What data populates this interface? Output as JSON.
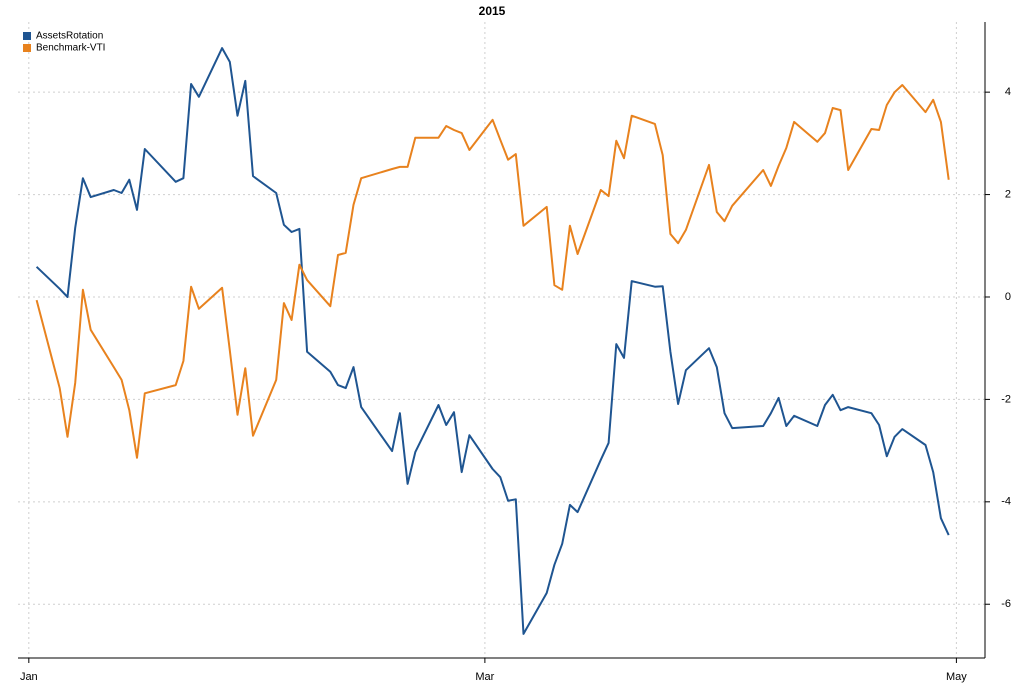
{
  "chart_data": {
    "type": "line",
    "title": "2015",
    "x": [
      1,
      4,
      5,
      6,
      7,
      8,
      11,
      12,
      13,
      14,
      15,
      19,
      20,
      21,
      22,
      25,
      26,
      27,
      28,
      29,
      32,
      33,
      34,
      35,
      36,
      39,
      40,
      41,
      42,
      43,
      47,
      48,
      49,
      50,
      53,
      54,
      55,
      56,
      57,
      60,
      61,
      62,
      63,
      64,
      67,
      68,
      69,
      70,
      71,
      74,
      75,
      76,
      77,
      78,
      81,
      82,
      83,
      84,
      85,
      88,
      89,
      90,
      91,
      95,
      96,
      97,
      98,
      99,
      102,
      103,
      104,
      105,
      106,
      109,
      110,
      111,
      112,
      113,
      116,
      117,
      118,
      119
    ],
    "xlim": [
      -1.4,
      123.7
    ],
    "xticks": [
      {
        "value": 0,
        "label": "Jan"
      },
      {
        "value": 59,
        "label": "Mar"
      },
      {
        "value": 120,
        "label": "May"
      }
    ],
    "ylim": [
      -7.05,
      5.37
    ],
    "yticks": [
      -6,
      -4,
      -2,
      0,
      2,
      4
    ],
    "grid": true,
    "legend": "top-left",
    "series": [
      {
        "name": "AssetsRotation",
        "color": "#1f5591",
        "values": [
          0.59,
          0.16,
          0,
          1.35,
          2.32,
          1.95,
          2.09,
          2.03,
          2.29,
          1.7,
          2.89,
          2.25,
          2.32,
          4.16,
          3.91,
          4.86,
          4.59,
          3.54,
          4.22,
          2.36,
          2.03,
          1.41,
          1.27,
          1.33,
          -1.07,
          -1.46,
          -1.72,
          -1.78,
          -1.37,
          -2.15,
          -3.01,
          -2.27,
          -3.65,
          -3.03,
          -2.11,
          -2.5,
          -2.25,
          -3.42,
          -2.7,
          -3.36,
          -3.52,
          -3.98,
          -3.95,
          -6.58,
          -5.78,
          -5.23,
          -4.82,
          -4.06,
          -4.2,
          -3.18,
          -2.85,
          -0.92,
          -1.19,
          0.31,
          0.2,
          0.21,
          -1.07,
          -2.09,
          -1.43,
          -1.0,
          -1.37,
          -2.27,
          -2.56,
          -2.52,
          -2.27,
          -1.97,
          -2.52,
          -2.32,
          -2.52,
          -2.11,
          -1.91,
          -2.21,
          -2.15,
          -2.27,
          -2.5,
          -3.11,
          -2.73,
          -2.58,
          -2.89,
          -3.42,
          -4.32,
          -4.65
        ]
      },
      {
        "name": "Benchmark-VTI",
        "color": "#e8821e",
        "values": [
          -0.06,
          -1.78,
          -2.73,
          -1.68,
          0.14,
          -0.64,
          -1.37,
          -1.62,
          -2.21,
          -3.14,
          -1.88,
          -1.72,
          -1.25,
          0.2,
          -0.23,
          0.18,
          -1.04,
          -2.3,
          -1.39,
          -2.71,
          -1.62,
          -0.12,
          -0.45,
          0.63,
          0.33,
          -0.18,
          0.82,
          0.86,
          1.8,
          2.32,
          2.5,
          2.54,
          2.54,
          3.11,
          3.11,
          3.34,
          3.26,
          3.2,
          2.87,
          3.46,
          3.07,
          2.68,
          2.79,
          1.39,
          1.76,
          0.23,
          0.14,
          1.39,
          0.84,
          2.09,
          1.97,
          3.05,
          2.71,
          3.54,
          3.38,
          2.77,
          1.23,
          1.05,
          1.31,
          2.58,
          1.66,
          1.48,
          1.78,
          2.48,
          2.17,
          2.56,
          2.91,
          3.42,
          3.03,
          3.2,
          3.69,
          3.65,
          2.48,
          3.28,
          3.26,
          3.75,
          4.0,
          4.14,
          3.61,
          3.85,
          3.42,
          2.29
        ]
      }
    ]
  }
}
